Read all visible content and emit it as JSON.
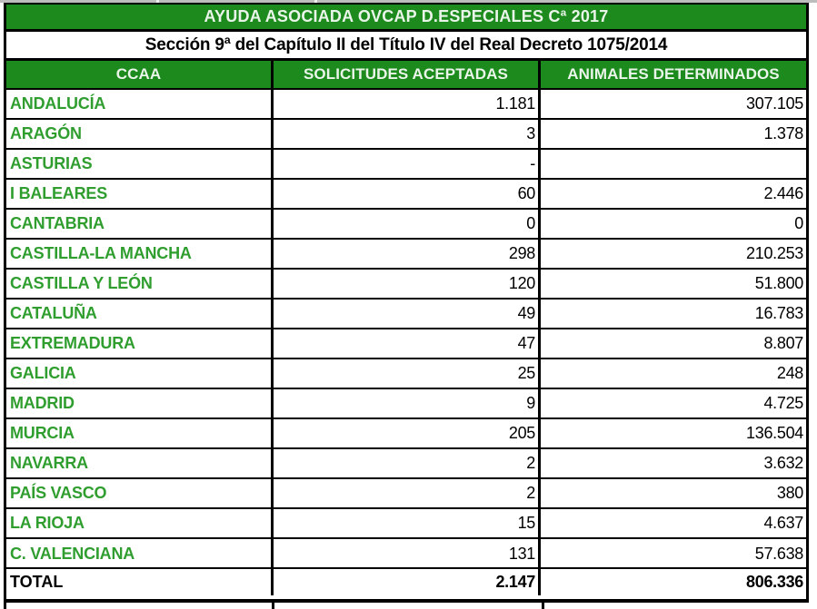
{
  "chart_data": {
    "type": "table",
    "title": "AYUDA ASOCIADA OVCAP D.ESPECIALES Cª 2017",
    "subtitle": "Sección 9ª del Capítulo II del Título IV del Real Decreto 1075/2014",
    "columns": [
      "CCAA",
      "SOLICITUDES ACEPTADAS",
      "ANIMALES DETERMINADOS"
    ],
    "rows": [
      [
        "ANDALUCÍA",
        "1.181",
        "307.105"
      ],
      [
        "ARAGÓN",
        "3",
        "1.378"
      ],
      [
        "ASTURIAS",
        "-",
        ""
      ],
      [
        "I BALEARES",
        "60",
        "2.446"
      ],
      [
        "CANTABRIA",
        "0",
        "0"
      ],
      [
        "CASTILLA-LA MANCHA",
        "298",
        "210.253"
      ],
      [
        "CASTILLA Y LEÓN",
        "120",
        "51.800"
      ],
      [
        "CATALUÑA",
        "49",
        "16.783"
      ],
      [
        "EXTREMADURA",
        "47",
        "8.807"
      ],
      [
        "GALICIA",
        "25",
        "248"
      ],
      [
        "MADRID",
        "9",
        "4.725"
      ],
      [
        "MURCIA",
        "205",
        "136.504"
      ],
      [
        "NAVARRA",
        "2",
        "3.632"
      ],
      [
        "PAÍS VASCO",
        "2",
        "380"
      ],
      [
        "LA RIOJA",
        "15",
        "4.637"
      ],
      [
        "C. VALENCIANA",
        "131",
        "57.638"
      ]
    ],
    "total_row": [
      "TOTAL",
      "2.147",
      "806.336"
    ],
    "layout": {
      "grid": "thick black cell borders",
      "value_alignment": "right",
      "label_alignment": "left"
    }
  },
  "colors": {
    "header_green": "#1d8a1d",
    "region_text_green": "#2f9e2f",
    "header_text": "#eaf5ea",
    "border": "#000000",
    "top_strip_gray": "#bdbdbd"
  }
}
